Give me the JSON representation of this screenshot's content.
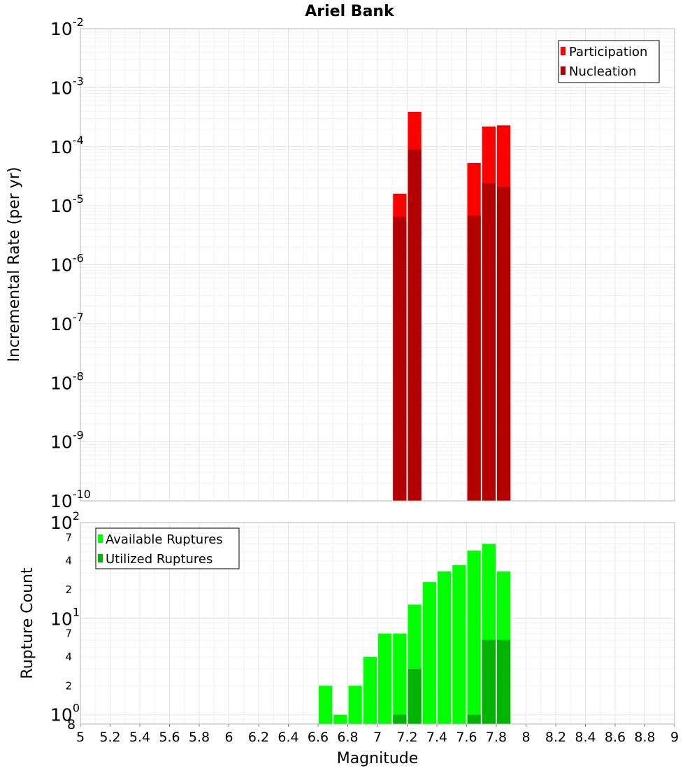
{
  "title": "Ariel Bank",
  "colors": {
    "participation": "#ff0000",
    "nucleation": "#b30000",
    "available": "#00ff00",
    "utilized": "#00b300"
  },
  "chart_data": [
    {
      "type": "bar",
      "ylabel": "Incremental Rate (per yr)",
      "yscale": "log",
      "ylim": [
        1e-10,
        0.01
      ],
      "grid": true,
      "legend_position": "top-right",
      "y_ticks": [
        {
          "base": "10",
          "exp": "-10"
        },
        {
          "base": "10",
          "exp": "-9"
        },
        {
          "base": "10",
          "exp": "-8"
        },
        {
          "base": "10",
          "exp": "-7"
        },
        {
          "base": "10",
          "exp": "-6"
        },
        {
          "base": "10",
          "exp": "-5"
        },
        {
          "base": "10",
          "exp": "-4"
        },
        {
          "base": "10",
          "exp": "-3"
        },
        {
          "base": "10",
          "exp": "-2"
        }
      ],
      "series": [
        {
          "name": "Participation",
          "x": [
            7.15,
            7.25,
            7.65,
            7.75,
            7.85
          ],
          "values": [
            1.6e-05,
            0.00039,
            5.3e-05,
            0.00022,
            0.00023
          ]
        },
        {
          "name": "Nucleation",
          "x": [
            7.15,
            7.25,
            7.65,
            7.75,
            7.85
          ],
          "values": [
            6.5e-06,
            9e-05,
            6.8e-06,
            2.4e-05,
            2.1e-05
          ]
        }
      ]
    },
    {
      "type": "bar",
      "xlabel": "Magnitude",
      "ylabel": "Rupture Count",
      "yscale": "log",
      "ylim": [
        0.8,
        100
      ],
      "xlim": [
        5,
        9
      ],
      "grid": true,
      "legend_position": "top-left",
      "x_ticks": [
        "5",
        "5.2",
        "5.4",
        "5.6",
        "5.8",
        "6",
        "6.2",
        "6.4",
        "6.6",
        "6.8",
        "7",
        "7.2",
        "7.4",
        "7.6",
        "7.8",
        "8",
        "8.2",
        "8.4",
        "8.6",
        "8.8",
        "9"
      ],
      "y_major_ticks": [
        {
          "value": 1,
          "base": "10",
          "exp": "0"
        },
        {
          "value": 10,
          "base": "10",
          "exp": "1"
        },
        {
          "value": 100,
          "base": "10",
          "exp": "2"
        }
      ],
      "y_minor_ticks": [
        {
          "value": 2,
          "label": "2"
        },
        {
          "value": 4,
          "label": "4"
        },
        {
          "value": 7,
          "label": "7"
        },
        {
          "value": 20,
          "label": "2"
        },
        {
          "value": 40,
          "label": "4"
        },
        {
          "value": 70,
          "label": "7"
        }
      ],
      "y_bottom_label": "8",
      "series": [
        {
          "name": "Available Ruptures",
          "x": [
            6.65,
            6.75,
            6.85,
            6.95,
            7.05,
            7.15,
            7.25,
            7.35,
            7.45,
            7.55,
            7.65,
            7.75,
            7.85
          ],
          "values": [
            2,
            1,
            2,
            4,
            7,
            7,
            14,
            24,
            31,
            36,
            51,
            60,
            31
          ]
        },
        {
          "name": "Utilized Ruptures",
          "x": [
            7.15,
            7.25,
            7.65,
            7.75,
            7.85
          ],
          "values": [
            1,
            3,
            1,
            6,
            6
          ]
        }
      ]
    }
  ]
}
